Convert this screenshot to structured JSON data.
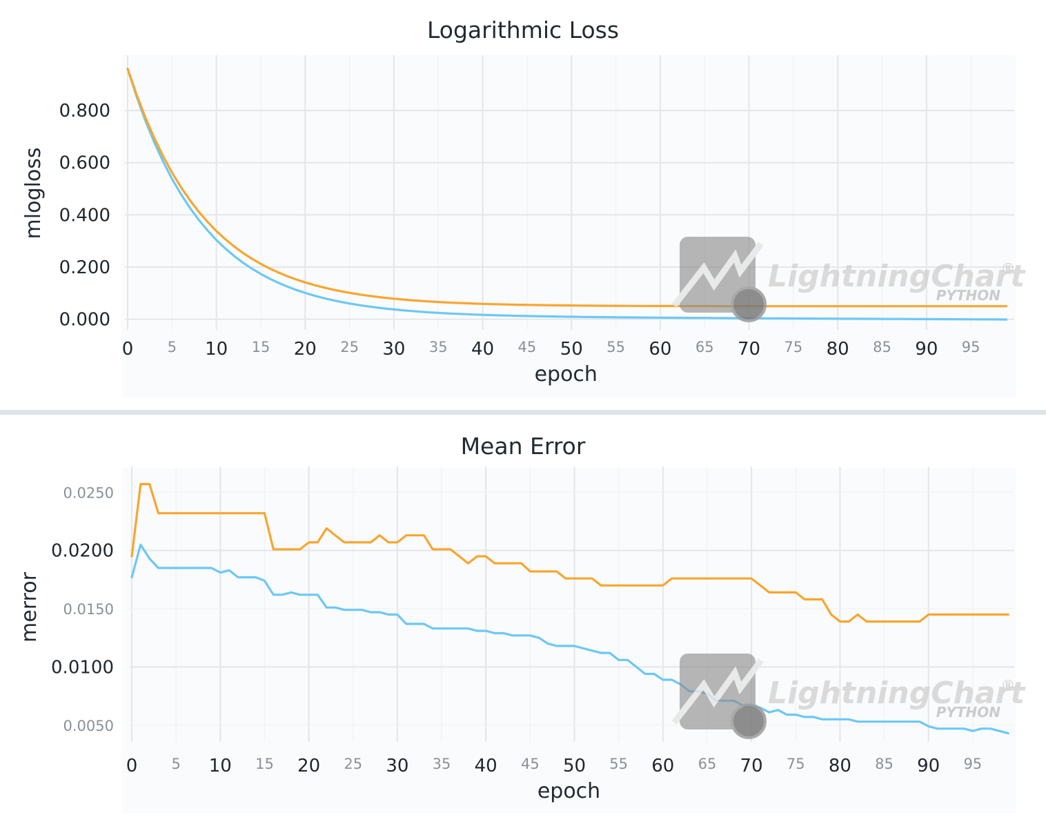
{
  "colors": {
    "train": "#6bc8f5",
    "test": "#f8a52e",
    "panel_bg": "#fafbfc",
    "separator": "#dde3e8"
  },
  "watermark": {
    "brand": "LightningChart",
    "sub": "PYTHON",
    "mark": "®",
    "icon": "lightning-python-logo-icon"
  },
  "chart_data": [
    {
      "type": "line",
      "title": "Logarithmic Loss",
      "xlabel": "epoch",
      "ylabel": "mlogloss",
      "xlim": [
        0,
        100
      ],
      "ylim": [
        -0.03,
        0.98
      ],
      "grid": true,
      "x_major_ticks": [
        "0",
        "10",
        "20",
        "30",
        "40",
        "50",
        "60",
        "70",
        "80",
        "90"
      ],
      "x_minor_ticks": [
        "5",
        "15",
        "25",
        "35",
        "45",
        "55",
        "65",
        "75",
        "85",
        "95"
      ],
      "y_major_ticks": [
        "0.000",
        "0.200",
        "0.400",
        "0.600",
        "0.800"
      ],
      "y_minor_ticks": [],
      "series": [
        {
          "color": "#6bc8f5",
          "model": "exp",
          "start": 0.96,
          "end": 0.015,
          "rate": 0.118,
          "slope": 0.00016,
          "points": 100
        },
        {
          "color": "#f8a52e",
          "model": "exp",
          "start": 0.96,
          "end": 0.05,
          "rate": 0.115,
          "slope": 3e-05,
          "points": 100
        }
      ]
    },
    {
      "type": "line",
      "title": "Mean Error",
      "xlabel": "epoch",
      "ylabel": "merror",
      "xlim": [
        0,
        100
      ],
      "ylim": [
        0.0038,
        0.0265
      ],
      "grid": true,
      "x_major_ticks": [
        "0",
        "10",
        "20",
        "30",
        "40",
        "50",
        "60",
        "70",
        "80",
        "90"
      ],
      "x_minor_ticks": [
        "5",
        "15",
        "25",
        "35",
        "45",
        "55",
        "65",
        "75",
        "85",
        "95"
      ],
      "y_major_ticks": [
        "0.0100",
        "0.0200"
      ],
      "y_minor_ticks": [
        "0.0050",
        "0.0150",
        "0.0250"
      ],
      "series": [
        {
          "color": "#f8a52e",
          "x": [
            0,
            1,
            2,
            3,
            4,
            5,
            6,
            7,
            8,
            9,
            10,
            11,
            12,
            13,
            14,
            15,
            16,
            17,
            18,
            19,
            20,
            21,
            22,
            23,
            24,
            25,
            26,
            27,
            28,
            29,
            30,
            31,
            32,
            33,
            34,
            35,
            36,
            37,
            38,
            39,
            40,
            41,
            42,
            43,
            44,
            45,
            46,
            47,
            48,
            49,
            50,
            51,
            52,
            53,
            54,
            55,
            56,
            57,
            58,
            59,
            60,
            61,
            62,
            63,
            64,
            65,
            66,
            67,
            68,
            69,
            70,
            71,
            72,
            73,
            74,
            75,
            76,
            77,
            78,
            79,
            80,
            81,
            82,
            83,
            84,
            85,
            86,
            87,
            88,
            89,
            90,
            91,
            92,
            93,
            94,
            95,
            96,
            97,
            98,
            99
          ],
          "y": [
            0.0195,
            0.0257,
            0.0257,
            0.0232,
            0.0232,
            0.0232,
            0.0232,
            0.0232,
            0.0232,
            0.0232,
            0.0232,
            0.0232,
            0.0232,
            0.0232,
            0.0232,
            0.0232,
            0.0201,
            0.0201,
            0.0201,
            0.0201,
            0.0207,
            0.0207,
            0.0219,
            0.0213,
            0.0207,
            0.0207,
            0.0207,
            0.0207,
            0.0213,
            0.0207,
            0.0207,
            0.0213,
            0.0213,
            0.0213,
            0.0201,
            0.0201,
            0.0201,
            0.0195,
            0.0189,
            0.0195,
            0.0195,
            0.0189,
            0.0189,
            0.0189,
            0.0189,
            0.0182,
            0.0182,
            0.0182,
            0.0182,
            0.0176,
            0.0176,
            0.0176,
            0.0176,
            0.017,
            0.017,
            0.017,
            0.017,
            0.017,
            0.017,
            0.017,
            0.017,
            0.0176,
            0.0176,
            0.0176,
            0.0176,
            0.0176,
            0.0176,
            0.0176,
            0.0176,
            0.0176,
            0.0176,
            0.017,
            0.0164,
            0.0164,
            0.0164,
            0.0164,
            0.0158,
            0.0158,
            0.0158,
            0.0145,
            0.0139,
            0.0139,
            0.0145,
            0.0139,
            0.0139,
            0.0139,
            0.0139,
            0.0139,
            0.0139,
            0.0139,
            0.0145,
            0.0145,
            0.0145,
            0.0145,
            0.0145,
            0.0145,
            0.0145,
            0.0145,
            0.0145,
            0.0145
          ]
        },
        {
          "color": "#6bc8f5",
          "x": [
            0,
            1,
            2,
            3,
            4,
            5,
            6,
            7,
            8,
            9,
            10,
            11,
            12,
            13,
            14,
            15,
            16,
            17,
            18,
            19,
            20,
            21,
            22,
            23,
            24,
            25,
            26,
            27,
            28,
            29,
            30,
            31,
            32,
            33,
            34,
            35,
            36,
            37,
            38,
            39,
            40,
            41,
            42,
            43,
            44,
            45,
            46,
            47,
            48,
            49,
            50,
            51,
            52,
            53,
            54,
            55,
            56,
            57,
            58,
            59,
            60,
            61,
            62,
            63,
            64,
            65,
            66,
            67,
            68,
            69,
            70,
            71,
            72,
            73,
            74,
            75,
            76,
            77,
            78,
            79,
            80,
            81,
            82,
            83,
            84,
            85,
            86,
            87,
            88,
            89,
            90,
            91,
            92,
            93,
            94,
            95,
            96,
            97,
            98,
            99
          ],
          "y": [
            0.0177,
            0.0205,
            0.0193,
            0.0185,
            0.0185,
            0.0185,
            0.0185,
            0.0185,
            0.0185,
            0.0185,
            0.0181,
            0.0183,
            0.0177,
            0.0177,
            0.0177,
            0.0174,
            0.0162,
            0.0162,
            0.0164,
            0.0162,
            0.0162,
            0.0162,
            0.0151,
            0.0151,
            0.0149,
            0.0149,
            0.0149,
            0.0147,
            0.0147,
            0.0145,
            0.0145,
            0.0137,
            0.0137,
            0.0137,
            0.0133,
            0.0133,
            0.0133,
            0.0133,
            0.0133,
            0.0131,
            0.0131,
            0.0129,
            0.0129,
            0.0127,
            0.0127,
            0.0127,
            0.0125,
            0.012,
            0.0118,
            0.0118,
            0.0118,
            0.0116,
            0.0114,
            0.0112,
            0.0112,
            0.0106,
            0.0106,
            0.01,
            0.0094,
            0.0094,
            0.0089,
            0.0089,
            0.0085,
            0.0079,
            0.0079,
            0.0077,
            0.0071,
            0.0071,
            0.0071,
            0.0067,
            0.0067,
            0.0065,
            0.0061,
            0.0063,
            0.0059,
            0.0059,
            0.0057,
            0.0057,
            0.0055,
            0.0055,
            0.0055,
            0.0055,
            0.0053,
            0.0053,
            0.0053,
            0.0053,
            0.0053,
            0.0053,
            0.0053,
            0.0053,
            0.0049,
            0.0047,
            0.0047,
            0.0047,
            0.0047,
            0.0045,
            0.0047,
            0.0047,
            0.0045,
            0.0043
          ]
        }
      ]
    }
  ]
}
